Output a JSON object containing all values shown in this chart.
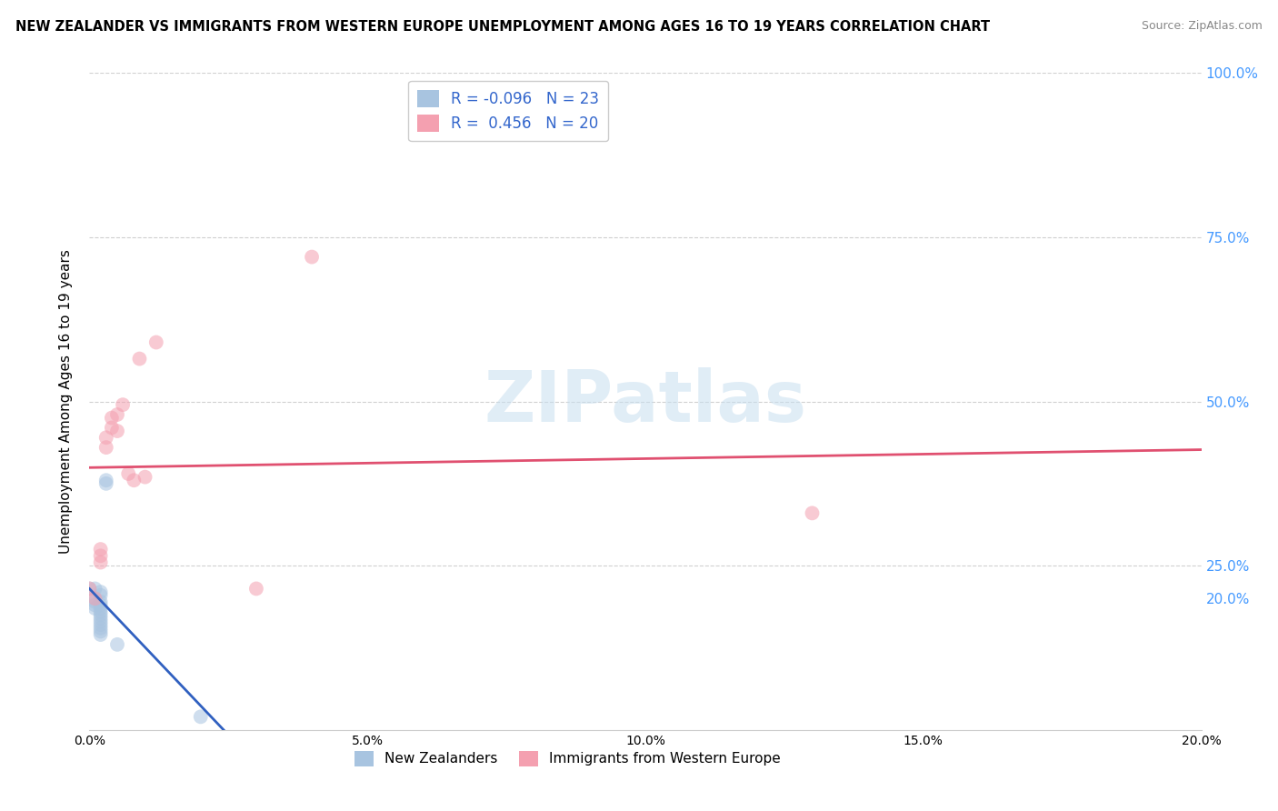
{
  "title": "NEW ZEALANDER VS IMMIGRANTS FROM WESTERN EUROPE UNEMPLOYMENT AMONG AGES 16 TO 19 YEARS CORRELATION CHART",
  "source": "Source: ZipAtlas.com",
  "ylabel": "Unemployment Among Ages 16 to 19 years",
  "xlim": [
    0.0,
    0.2
  ],
  "ylim": [
    0.0,
    1.0
  ],
  "nz_points": [
    [
      0.0,
      0.215
    ],
    [
      0.001,
      0.215
    ],
    [
      0.001,
      0.2
    ],
    [
      0.001,
      0.195
    ],
    [
      0.001,
      0.19
    ],
    [
      0.001,
      0.185
    ],
    [
      0.002,
      0.21
    ],
    [
      0.002,
      0.205
    ],
    [
      0.002,
      0.195
    ],
    [
      0.002,
      0.19
    ],
    [
      0.002,
      0.185
    ],
    [
      0.002,
      0.18
    ],
    [
      0.002,
      0.175
    ],
    [
      0.002,
      0.17
    ],
    [
      0.002,
      0.165
    ],
    [
      0.002,
      0.16
    ],
    [
      0.002,
      0.155
    ],
    [
      0.002,
      0.15
    ],
    [
      0.002,
      0.145
    ],
    [
      0.003,
      0.38
    ],
    [
      0.003,
      0.375
    ],
    [
      0.005,
      0.13
    ],
    [
      0.02,
      0.02
    ]
  ],
  "we_points": [
    [
      0.0,
      0.215
    ],
    [
      0.001,
      0.2
    ],
    [
      0.002,
      0.275
    ],
    [
      0.002,
      0.265
    ],
    [
      0.002,
      0.255
    ],
    [
      0.003,
      0.445
    ],
    [
      0.003,
      0.43
    ],
    [
      0.004,
      0.475
    ],
    [
      0.004,
      0.46
    ],
    [
      0.005,
      0.48
    ],
    [
      0.005,
      0.455
    ],
    [
      0.006,
      0.495
    ],
    [
      0.007,
      0.39
    ],
    [
      0.008,
      0.38
    ],
    [
      0.009,
      0.565
    ],
    [
      0.01,
      0.385
    ],
    [
      0.012,
      0.59
    ],
    [
      0.03,
      0.215
    ],
    [
      0.04,
      0.72
    ],
    [
      0.13,
      0.33
    ]
  ],
  "nz_color": "#a8c4e0",
  "we_color": "#f4a0b0",
  "nz_line_color": "#3060c0",
  "we_line_color": "#e05070",
  "nz_R": -0.096,
  "nz_N": 23,
  "we_R": 0.456,
  "we_N": 20,
  "watermark": "ZIPatlas",
  "background_color": "#ffffff",
  "grid_color": "#d0d0d0",
  "marker_size": 130,
  "marker_alpha": 0.55,
  "right_ytick_positions": [
    0.2,
    0.25,
    0.5,
    0.75,
    1.0
  ],
  "right_ytick_labels": [
    "20.0%",
    "25.0%",
    "50.0%",
    "75.0%",
    "100.0%"
  ],
  "left_ytick_positions": [
    0.25,
    0.5,
    0.75,
    1.0
  ],
  "xtick_positions": [
    0.0,
    0.05,
    0.1,
    0.15,
    0.2
  ],
  "xtick_labels": [
    "0.0%",
    "5.0%",
    "10.0%",
    "15.0%",
    "20.0%"
  ]
}
